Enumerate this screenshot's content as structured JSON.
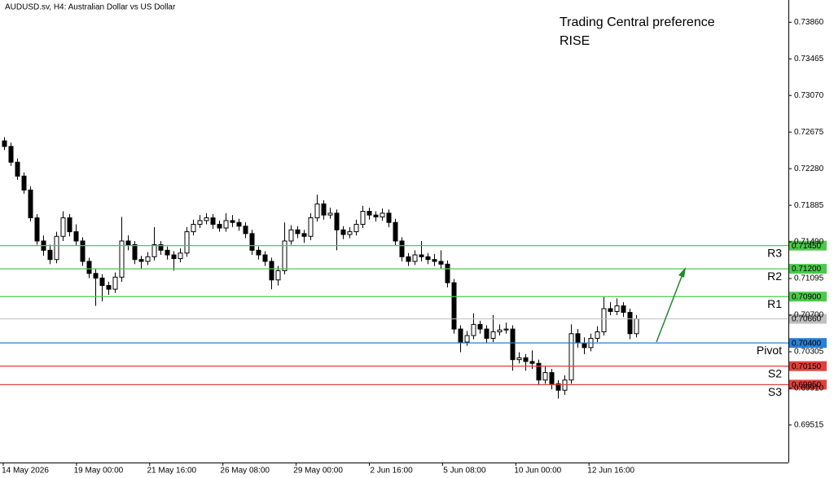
{
  "chart_data": {
    "type": "candlestick",
    "header": "AUDUSD.sv, H4:  Australian Dollar vs US Dollar",
    "annotation": [
      "Trading Central preference",
      "RISE"
    ],
    "annotation_color": "#4cd964",
    "ylim": [
      0.6911,
      0.741
    ],
    "yticks": [
      {
        "value": 0.7386,
        "label": "0.73860"
      },
      0.73465,
      {
        "value": 0.7307,
        "label": "0.73070"
      },
      0.72675,
      {
        "value": 0.7228,
        "label": "0.72280"
      },
      0.71885,
      {
        "value": 0.7149,
        "label": "0.71490"
      },
      0.71095,
      {
        "value": 0.707,
        "label": "0.70700"
      },
      0.70305,
      {
        "value": 0.6991,
        "label": "0.69910"
      },
      0.69515
    ],
    "x_labels": [
      "14 May 2026",
      "19 May 00:00",
      "21 May 16:00",
      "26 May 08:00",
      "29 May 00:00",
      "2 Jun 16:00",
      "5 Jun 08:00",
      "10 Jun 00:00",
      "12 Jun 16:00"
    ],
    "open": [
      0.7258,
      0.7252,
      0.7235,
      0.722,
      0.7205,
      0.7175,
      0.715,
      0.714,
      0.713,
      0.7155,
      0.7175,
      0.716,
      0.715,
      0.7128,
      0.7115,
      0.711,
      0.7102,
      0.7098,
      0.7111,
      0.715,
      0.7146,
      0.713,
      0.7128,
      0.7133,
      0.7146,
      0.714,
      0.7135,
      0.7131,
      0.7137,
      0.716,
      0.7168,
      0.7172,
      0.7175,
      0.7168,
      0.7164,
      0.7172,
      0.717,
      0.7166,
      0.7158,
      0.714,
      0.7135,
      0.7128,
      0.7108,
      0.7118,
      0.715,
      0.7162,
      0.7158,
      0.7155,
      0.7175,
      0.719,
      0.7178,
      0.718,
      0.7162,
      0.7157,
      0.716,
      0.7168,
      0.7182,
      0.7178,
      0.7176,
      0.718,
      0.717,
      0.715,
      0.7133,
      0.7128,
      0.7135,
      0.7133,
      0.713,
      0.7128,
      0.7125,
      0.7105,
      0.7055,
      0.7041,
      0.7048,
      0.706,
      0.7055,
      0.7045,
      0.7052,
      0.7054,
      0.7055,
      0.7022,
      0.7024,
      0.702,
      0.7018,
      0.7,
      0.7008,
      0.6996,
      0.6989,
      0.7,
      0.705,
      0.704,
      0.7035,
      0.7045,
      0.7052,
      0.7077,
      0.7074,
      0.708,
      0.7073,
      0.705
    ],
    "high": [
      0.7262,
      0.7256,
      0.7239,
      0.7224,
      0.7209,
      0.7179,
      0.7156,
      0.7146,
      0.716,
      0.7182,
      0.7179,
      0.7168,
      0.7154,
      0.7132,
      0.712,
      0.7114,
      0.7106,
      0.7116,
      0.7176,
      0.7156,
      0.715,
      0.7134,
      0.7138,
      0.7165,
      0.715,
      0.7144,
      0.7139,
      0.7142,
      0.7165,
      0.7173,
      0.7178,
      0.718,
      0.7179,
      0.7172,
      0.718,
      0.7178,
      0.7174,
      0.717,
      0.7162,
      0.7144,
      0.7139,
      0.7132,
      0.7123,
      0.717,
      0.7167,
      0.7166,
      0.7162,
      0.718,
      0.72,
      0.7194,
      0.7186,
      0.7184,
      0.7166,
      0.7165,
      0.7173,
      0.7188,
      0.7186,
      0.7182,
      0.7185,
      0.7184,
      0.7174,
      0.7154,
      0.7137,
      0.714,
      0.715,
      0.7137,
      0.7136,
      0.714,
      0.7129,
      0.7109,
      0.7059,
      0.7053,
      0.7072,
      0.7064,
      0.7059,
      0.707,
      0.706,
      0.7062,
      0.7059,
      0.703,
      0.7028,
      0.7032,
      0.7022,
      0.7015,
      0.7012,
      0.7,
      0.7005,
      0.706,
      0.7055,
      0.7046,
      0.705,
      0.7058,
      0.709,
      0.7084,
      0.7088,
      0.7084,
      0.7077,
      0.707
    ],
    "low": [
      0.7248,
      0.7231,
      0.7216,
      0.7201,
      0.7171,
      0.7146,
      0.7134,
      0.7125,
      0.7126,
      0.715,
      0.7155,
      0.7145,
      0.7123,
      0.711,
      0.708,
      0.7085,
      0.7092,
      0.7094,
      0.7106,
      0.714,
      0.7125,
      0.712,
      0.7124,
      0.7129,
      0.7135,
      0.713,
      0.7118,
      0.7127,
      0.7133,
      0.7156,
      0.7164,
      0.7168,
      0.7163,
      0.716,
      0.716,
      0.7165,
      0.7161,
      0.7153,
      0.7135,
      0.713,
      0.7123,
      0.7098,
      0.7102,
      0.7114,
      0.7146,
      0.7153,
      0.7148,
      0.7151,
      0.7171,
      0.7173,
      0.7174,
      0.714,
      0.7152,
      0.7153,
      0.7156,
      0.7164,
      0.7173,
      0.7171,
      0.7172,
      0.7165,
      0.7145,
      0.7128,
      0.7123,
      0.7124,
      0.7128,
      0.7125,
      0.7123,
      0.712,
      0.71,
      0.705,
      0.703,
      0.7037,
      0.7044,
      0.705,
      0.704,
      0.7041,
      0.7048,
      0.705,
      0.701,
      0.7018,
      0.701,
      0.7012,
      0.6995,
      0.6996,
      0.699,
      0.698,
      0.6984,
      0.6996,
      0.7035,
      0.7028,
      0.7031,
      0.7041,
      0.7048,
      0.707,
      0.707,
      0.7068,
      0.7044,
      0.7046
    ],
    "close": [
      0.7252,
      0.7235,
      0.722,
      0.7205,
      0.7175,
      0.715,
      0.714,
      0.713,
      0.7155,
      0.7175,
      0.716,
      0.715,
      0.7128,
      0.7115,
      0.711,
      0.7102,
      0.7098,
      0.7111,
      0.715,
      0.7146,
      0.713,
      0.7128,
      0.7133,
      0.7146,
      0.714,
      0.7135,
      0.7131,
      0.7137,
      0.716,
      0.7168,
      0.7172,
      0.7175,
      0.7168,
      0.7164,
      0.7172,
      0.717,
      0.7166,
      0.7158,
      0.714,
      0.7135,
      0.7128,
      0.7108,
      0.7118,
      0.715,
      0.7162,
      0.7158,
      0.7155,
      0.7175,
      0.719,
      0.7178,
      0.718,
      0.7162,
      0.7157,
      0.716,
      0.7168,
      0.7182,
      0.7178,
      0.7176,
      0.718,
      0.717,
      0.715,
      0.7133,
      0.7128,
      0.7135,
      0.7133,
      0.713,
      0.7128,
      0.7125,
      0.7105,
      0.7055,
      0.7041,
      0.7048,
      0.706,
      0.7055,
      0.7045,
      0.7052,
      0.7054,
      0.7055,
      0.7022,
      0.7024,
      0.702,
      0.7018,
      0.7,
      0.7008,
      0.6996,
      0.6989,
      0.7,
      0.705,
      0.704,
      0.7035,
      0.7045,
      0.7052,
      0.7077,
      0.7074,
      0.708,
      0.7073,
      0.705,
      0.7066
    ],
    "last_price": 0.7066,
    "last_price_label": "0.70660",
    "levels": [
      {
        "name": "R3",
        "value": 0.7145,
        "value_label": "0.71450",
        "color": "#4cc94c"
      },
      {
        "name": "R2",
        "value": 0.712,
        "value_label": "0.71200",
        "color": "#4cc94c"
      },
      {
        "name": "R1",
        "value": 0.709,
        "value_label": "0.70900",
        "color": "#4cc94c"
      },
      {
        "name": "Pivot",
        "value": 0.704,
        "value_label": "0.70400",
        "color": "#2a7fd4"
      },
      {
        "name": "S2",
        "value": 0.7015,
        "value_label": "0.70150",
        "color": "#e0403a"
      },
      {
        "name": "S3",
        "value": 0.6995,
        "value_label": "0.69950",
        "color": "#e0403a"
      }
    ]
  }
}
